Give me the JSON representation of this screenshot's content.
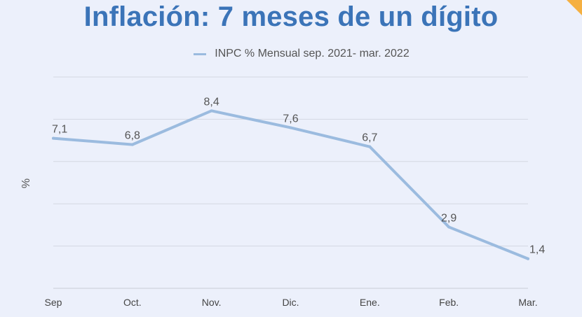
{
  "chart_data": {
    "type": "line",
    "title": "Inflación: 7 meses de un dígito",
    "ylabel": "%",
    "xlabel": "",
    "categories": [
      "Sep",
      "Oct.",
      "Nov.",
      "Dic.",
      "Ene.",
      "Feb.",
      "Mar."
    ],
    "series": [
      {
        "name": "INPC % Mensual sep. 2021- mar. 2022",
        "values": [
          7.1,
          6.8,
          8.4,
          7.6,
          6.7,
          2.9,
          1.4
        ],
        "labels": [
          "7,1",
          "6,8",
          "8,4",
          "7,6",
          "6,7",
          "2,9",
          "1,4"
        ],
        "color": "#9bbbdf"
      }
    ],
    "ylim": [
      0,
      10
    ],
    "grid": true,
    "legend": "top-center"
  },
  "colors": {
    "title": "#3b74b8",
    "background": "#ecf0fb",
    "grid": "#d3d7e2",
    "corner": "#f5b041"
  }
}
